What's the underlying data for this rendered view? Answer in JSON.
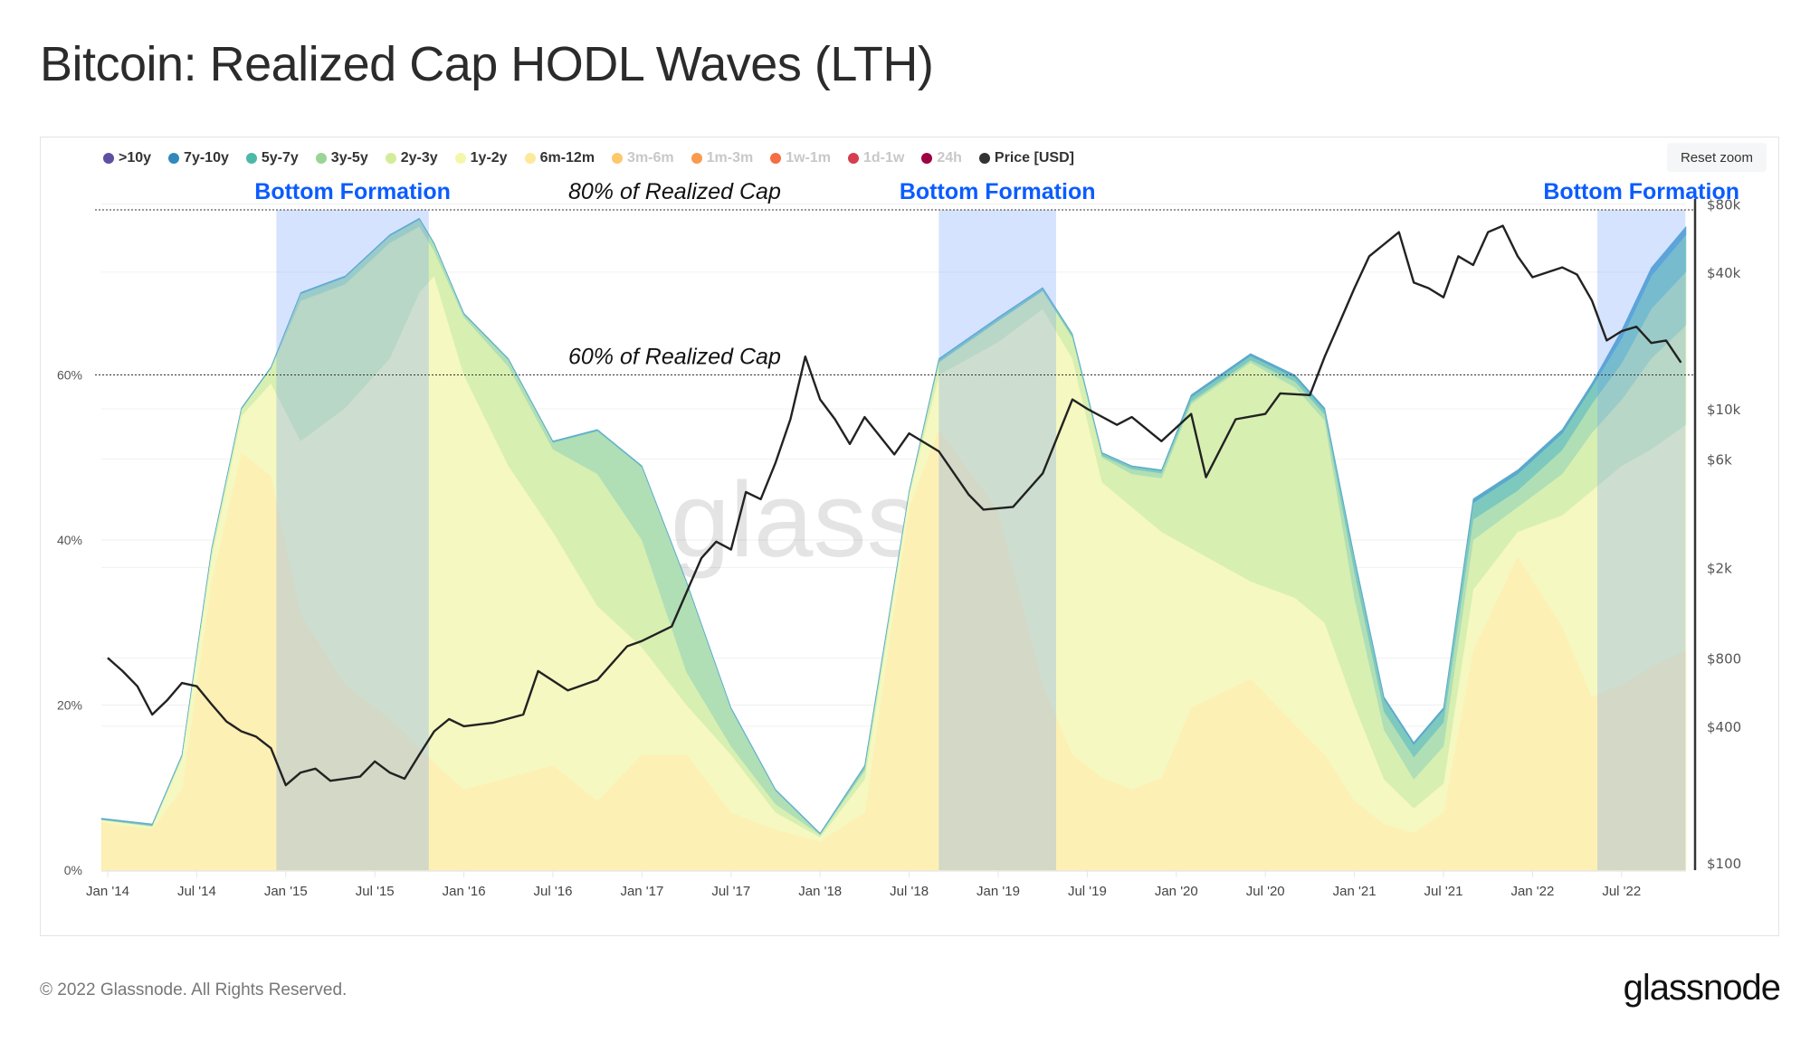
{
  "title": "Bitcoin: Realized Cap HODL Waves (LTH)",
  "reset_zoom_label": "Reset zoom",
  "footer": {
    "copyright": "© 2022 Glassnode. All Rights Reserved.",
    "logo": "glassnode"
  },
  "legend": [
    {
      "label": ">10y",
      "color": "#5e4fa2",
      "active": true
    },
    {
      "label": "7y-10y",
      "color": "#3288bd",
      "active": true
    },
    {
      "label": "5y-7y",
      "color": "#4cb8a8",
      "active": true
    },
    {
      "label": "3y-5y",
      "color": "#99d594",
      "active": true
    },
    {
      "label": "2y-3y",
      "color": "#d3ec9a",
      "active": true
    },
    {
      "label": "1y-2y",
      "color": "#f4f6aa",
      "active": true
    },
    {
      "label": "6m-12m",
      "color": "#fee89a",
      "active": true
    },
    {
      "label": "3m-6m",
      "color": "#fdc86a",
      "active": false
    },
    {
      "label": "1m-3m",
      "color": "#f99a4e",
      "active": false
    },
    {
      "label": "1w-1m",
      "color": "#f46d43",
      "active": false
    },
    {
      "label": "1d-1w",
      "color": "#d53e4f",
      "active": false
    },
    {
      "label": "24h",
      "color": "#9e0142",
      "active": false
    },
    {
      "label": "Price [USD]",
      "color": "#333333",
      "active": true
    }
  ],
  "chart_data": {
    "type": "area",
    "stacked": true,
    "x_ticks": [
      "Jan '14",
      "Jul '14",
      "Jan '15",
      "Jul '15",
      "Jan '16",
      "Jul '16",
      "Jan '17",
      "Jul '17",
      "Jan '18",
      "Jul '18",
      "Jan '19",
      "Jul '19",
      "Jan '20",
      "Jul '20",
      "Jan '21",
      "Jul '21",
      "Jan '22",
      "Jul '22"
    ],
    "y_left": {
      "ticks": [
        0,
        20,
        40,
        60
      ],
      "suffix": "%",
      "range": [
        0,
        80
      ]
    },
    "y_right": {
      "scale": "log",
      "range": [
        100,
        80000
      ],
      "tick_labels": [
        "$80k",
        "$40k",
        "$10k",
        "$6k",
        "$2k",
        "$800",
        "$400",
        "$100"
      ],
      "tick_values": [
        80000,
        40000,
        10000,
        6000,
        2000,
        800,
        400,
        100
      ]
    },
    "watermark": "glassnode",
    "reference_lines": [
      {
        "value": 80,
        "label": "80% of Realized Cap"
      },
      {
        "value": 60,
        "label": "60% of Realized Cap"
      }
    ],
    "highlight_regions": [
      {
        "label": "Bottom Formation",
        "start": "2014-12-12",
        "end": "2015-10-20"
      },
      {
        "label": "Bottom Formation",
        "start": "2018-09-01",
        "end": "2019-04-28"
      },
      {
        "label": "Bottom Formation",
        "start": "2022-05-12",
        "end": "2022-11-10"
      }
    ],
    "band_dates": [
      "2014-01",
      "2014-04",
      "2014-06",
      "2014-08",
      "2014-10",
      "2014-12",
      "2015-02",
      "2015-05",
      "2015-08",
      "2015-10",
      "2015-11",
      "2016-01",
      "2016-04",
      "2016-07",
      "2016-10",
      "2017-01",
      "2017-04",
      "2017-07",
      "2017-10",
      "2018-01",
      "2018-04",
      "2018-07",
      "2018-09",
      "2019-01",
      "2019-04",
      "2019-06",
      "2019-08",
      "2019-10",
      "2019-12",
      "2020-02",
      "2020-06",
      "2020-09",
      "2020-11",
      "2021-01",
      "2021-03",
      "2021-05",
      "2021-07",
      "2021-09",
      "2021-12",
      "2022-03",
      "2022-05",
      "2022-07",
      "2022-09",
      "2022-11"
    ],
    "series": [
      {
        "name": "6m-12m",
        "fill": "#fdf0b4",
        "values": [
          5.8,
          5.0,
          9.8,
          35,
          50.6,
          47.8,
          31,
          22.5,
          18.3,
          14.8,
          13,
          9.8,
          11.2,
          12.7,
          8.4,
          14,
          14,
          7,
          4.9,
          3.5,
          7,
          44,
          53.4,
          43.6,
          22.5,
          14,
          11.2,
          9.8,
          11.2,
          19.7,
          23.2,
          17.6,
          14,
          8.4,
          5.6,
          4.5,
          7,
          26.7,
          38,
          29.5,
          21,
          22.5,
          24.6,
          26.7
        ]
      },
      {
        "name": "1y-2y",
        "fill": "#f5f8c0",
        "values": [
          0.3,
          0.3,
          3.7,
          3,
          4.4,
          11.2,
          21,
          33.5,
          43.7,
          55.2,
          59,
          50.2,
          37.8,
          28.3,
          23.6,
          13,
          6,
          7,
          2.1,
          0.5,
          4,
          1.5,
          6.6,
          20.4,
          45.5,
          48,
          35.8,
          34.2,
          29.8,
          19.3,
          11.8,
          15.4,
          16,
          11.6,
          5.4,
          3,
          3.5,
          7.3,
          3,
          13.5,
          25,
          26.5,
          26.4,
          27.3
        ]
      },
      {
        "name": "2y-3y",
        "fill": "#d8efb2",
        "values": [
          0,
          0,
          0.3,
          0.8,
          0.8,
          1.8,
          17,
          15,
          14,
          8,
          3,
          7,
          12,
          10,
          16,
          13,
          4,
          1,
          1,
          0.3,
          1,
          0.3,
          1.5,
          2.5,
          2.2,
          2.5,
          3,
          4,
          6.5,
          17.5,
          26.5,
          25.5,
          24.5,
          13,
          6,
          3.5,
          4.5,
          6,
          3,
          5,
          7,
          8,
          11,
          12
        ]
      },
      {
        "name": "3y-5y",
        "fill": "#b0dfb5",
        "values": [
          0,
          0.1,
          0,
          0,
          0,
          0,
          0.8,
          0.8,
          0.8,
          0.8,
          0.8,
          0.3,
          0.8,
          0.8,
          5.2,
          8.8,
          10.8,
          4.5,
          1.6,
          0,
          0.3,
          0,
          0.1,
          0.1,
          0,
          0.1,
          0.2,
          0.6,
          0.6,
          0.3,
          0.3,
          0.7,
          0.7,
          3.2,
          2.2,
          2.7,
          2.9,
          2.5,
          2,
          2.9,
          3.5,
          4.4,
          6,
          6.5
        ]
      },
      {
        "name": "5y-7y",
        "fill": "#7ec9bd",
        "values": [
          0.1,
          0.1,
          0.1,
          0.1,
          0.1,
          0.1,
          0.1,
          0.1,
          0.1,
          0.1,
          0.1,
          0.1,
          0.1,
          0.1,
          0.1,
          0.1,
          0.1,
          0.1,
          0.1,
          0.1,
          0.3,
          0.1,
          0.3,
          0.3,
          0.3,
          0.3,
          0.3,
          0.3,
          0.3,
          0.5,
          0.5,
          0.5,
          0.5,
          1.5,
          1.5,
          1.5,
          1.5,
          2,
          2,
          2,
          2,
          3,
          4,
          4.5
        ]
      },
      {
        "name": "7y-10y",
        "fill": "#5aa9cd",
        "values": [
          0.1,
          0.1,
          0.1,
          0.1,
          0.1,
          0.1,
          0.1,
          0.1,
          0.1,
          0.1,
          0.1,
          0.1,
          0.1,
          0.1,
          0.1,
          0.1,
          0.1,
          0.1,
          0.1,
          0.1,
          0.1,
          0.1,
          0.1,
          0.1,
          0.1,
          0.1,
          0.1,
          0.1,
          0.1,
          0.3,
          0.3,
          0.3,
          0.3,
          0.3,
          0.3,
          0.3,
          0.3,
          0.5,
          0.5,
          0.5,
          0.5,
          1,
          1,
          1
        ]
      }
    ],
    "price": {
      "name": "Price [USD]",
      "color": "#222222",
      "dates": [
        "2014-01",
        "2014-02",
        "2014-03",
        "2014-04",
        "2014-05",
        "2014-06",
        "2014-07",
        "2014-08",
        "2014-09",
        "2014-10",
        "2014-11",
        "2014-12",
        "2015-01",
        "2015-02",
        "2015-03",
        "2015-04",
        "2015-05",
        "2015-06",
        "2015-07",
        "2015-08",
        "2015-09",
        "2015-10",
        "2015-11",
        "2015-12",
        "2016-01",
        "2016-03",
        "2016-05",
        "2016-06",
        "2016-08",
        "2016-10",
        "2016-12",
        "2017-01",
        "2017-03",
        "2017-05",
        "2017-06",
        "2017-07",
        "2017-08",
        "2017-09",
        "2017-10",
        "2017-11",
        "2017-12",
        "2018-01",
        "2018-02",
        "2018-03",
        "2018-04",
        "2018-06",
        "2018-07",
        "2018-09",
        "2018-11",
        "2018-12",
        "2019-02",
        "2019-04",
        "2019-06",
        "2019-07",
        "2019-09",
        "2019-10",
        "2019-12",
        "2020-02",
        "2020-03",
        "2020-05",
        "2020-07",
        "2020-08",
        "2020-10",
        "2020-11",
        "2020-12",
        "2021-01",
        "2021-02",
        "2021-04",
        "2021-05",
        "2021-06",
        "2021-07",
        "2021-08",
        "2021-09",
        "2021-10",
        "2021-11",
        "2021-12",
        "2022-01",
        "2022-03",
        "2022-04",
        "2022-05",
        "2022-06",
        "2022-07",
        "2022-08",
        "2022-09",
        "2022-10",
        "2022-11"
      ],
      "values": [
        800,
        700,
        600,
        450,
        520,
        620,
        600,
        500,
        420,
        380,
        360,
        320,
        220,
        250,
        260,
        230,
        235,
        240,
        280,
        250,
        235,
        300,
        380,
        430,
        400,
        415,
        450,
        700,
        575,
        640,
        900,
        950,
        1100,
        2200,
        2600,
        2400,
        4300,
        4000,
        5800,
        9000,
        17000,
        11000,
        9000,
        7000,
        9200,
        6300,
        7800,
        6500,
        4200,
        3600,
        3700,
        5200,
        11000,
        10000,
        8500,
        9200,
        7200,
        9500,
        5000,
        9000,
        9500,
        11700,
        11500,
        17000,
        24000,
        34000,
        47000,
        60000,
        36000,
        34000,
        31000,
        47000,
        43000,
        60000,
        64000,
        47000,
        38000,
        42000,
        39000,
        30000,
        20000,
        22000,
        23000,
        19500,
        20000,
        16000
      ]
    }
  }
}
